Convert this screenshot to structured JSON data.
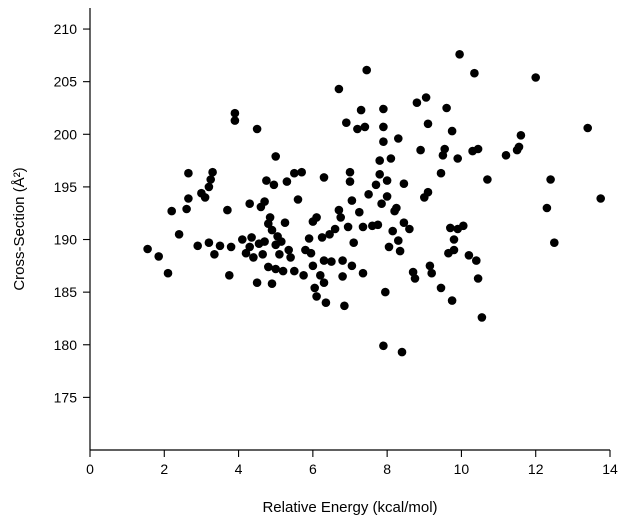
{
  "chart_data": {
    "type": "scatter",
    "title": "",
    "xlabel": "Relative Energy (kcal/mol)",
    "ylabel": "Cross-Section (Å²)",
    "xlim": [
      0,
      14
    ],
    "ylim": [
      170,
      212
    ],
    "xticks": [
      0,
      2,
      4,
      6,
      8,
      10,
      12,
      14
    ],
    "yticks": [
      175,
      180,
      185,
      190,
      195,
      200,
      205,
      210
    ],
    "grid": false,
    "legend": "none",
    "marker_color": "#000000",
    "points": [
      [
        1.55,
        189.1
      ],
      [
        1.85,
        188.4
      ],
      [
        2.1,
        186.8
      ],
      [
        2.2,
        192.7
      ],
      [
        2.4,
        190.5
      ],
      [
        2.6,
        192.9
      ],
      [
        2.65,
        193.9
      ],
      [
        2.65,
        196.3
      ],
      [
        2.9,
        189.4
      ],
      [
        3.0,
        194.4
      ],
      [
        3.1,
        194.0
      ],
      [
        3.2,
        189.7
      ],
      [
        3.2,
        195.0
      ],
      [
        3.25,
        195.7
      ],
      [
        3.3,
        196.4
      ],
      [
        3.35,
        188.6
      ],
      [
        3.5,
        189.4
      ],
      [
        3.7,
        192.8
      ],
      [
        3.75,
        186.6
      ],
      [
        3.8,
        189.3
      ],
      [
        3.9,
        201.3
      ],
      [
        3.9,
        202.0
      ],
      [
        4.1,
        190.0
      ],
      [
        4.2,
        188.7
      ],
      [
        4.3,
        189.3
      ],
      [
        4.3,
        193.4
      ],
      [
        4.35,
        190.2
      ],
      [
        4.4,
        188.3
      ],
      [
        4.5,
        185.9
      ],
      [
        4.5,
        200.5
      ],
      [
        4.55,
        189.6
      ],
      [
        4.6,
        193.1
      ],
      [
        4.65,
        188.6
      ],
      [
        4.7,
        189.8
      ],
      [
        4.7,
        193.6
      ],
      [
        4.75,
        195.6
      ],
      [
        4.8,
        187.4
      ],
      [
        4.8,
        191.5
      ],
      [
        4.85,
        192.1
      ],
      [
        4.9,
        185.8
      ],
      [
        4.9,
        190.9
      ],
      [
        4.95,
        195.2
      ],
      [
        5.0,
        187.2
      ],
      [
        5.0,
        189.5
      ],
      [
        5.0,
        197.9
      ],
      [
        5.05,
        190.3
      ],
      [
        5.1,
        188.6
      ],
      [
        5.15,
        189.8
      ],
      [
        5.2,
        187.0
      ],
      [
        5.25,
        191.6
      ],
      [
        5.3,
        195.5
      ],
      [
        5.35,
        189.0
      ],
      [
        5.4,
        188.3
      ],
      [
        5.5,
        187.0
      ],
      [
        5.5,
        196.3
      ],
      [
        5.6,
        193.8
      ],
      [
        5.7,
        196.4
      ],
      [
        5.75,
        186.6
      ],
      [
        5.8,
        189.0
      ],
      [
        5.9,
        190.1
      ],
      [
        5.95,
        188.7
      ],
      [
        6.0,
        187.5
      ],
      [
        6.0,
        191.7
      ],
      [
        6.05,
        185.4
      ],
      [
        6.1,
        184.6
      ],
      [
        6.1,
        192.1
      ],
      [
        6.2,
        186.6
      ],
      [
        6.25,
        190.2
      ],
      [
        6.3,
        185.9
      ],
      [
        6.3,
        188.0
      ],
      [
        6.3,
        195.9
      ],
      [
        6.35,
        184.0
      ],
      [
        6.45,
        190.5
      ],
      [
        6.5,
        187.9
      ],
      [
        6.6,
        191.0
      ],
      [
        6.7,
        204.3
      ],
      [
        6.7,
        192.8
      ],
      [
        6.75,
        192.1
      ],
      [
        6.8,
        188.0
      ],
      [
        6.8,
        186.5
      ],
      [
        6.85,
        183.7
      ],
      [
        6.9,
        201.1
      ],
      [
        6.95,
        191.2
      ],
      [
        7.0,
        196.4
      ],
      [
        7.0,
        195.5
      ],
      [
        7.05,
        187.5
      ],
      [
        7.05,
        193.7
      ],
      [
        7.1,
        189.7
      ],
      [
        7.2,
        200.5
      ],
      [
        7.25,
        192.6
      ],
      [
        7.3,
        202.3
      ],
      [
        7.35,
        186.8
      ],
      [
        7.35,
        191.2
      ],
      [
        7.4,
        200.7
      ],
      [
        7.45,
        206.1
      ],
      [
        7.5,
        194.3
      ],
      [
        7.6,
        191.3
      ],
      [
        7.7,
        195.2
      ],
      [
        7.75,
        191.4
      ],
      [
        7.8,
        196.2
      ],
      [
        7.8,
        197.5
      ],
      [
        7.85,
        193.4
      ],
      [
        7.9,
        199.3
      ],
      [
        7.9,
        200.7
      ],
      [
        7.9,
        202.4
      ],
      [
        7.9,
        179.9
      ],
      [
        7.95,
        185.0
      ],
      [
        8.0,
        194.1
      ],
      [
        8.0,
        195.6
      ],
      [
        8.05,
        189.3
      ],
      [
        8.1,
        197.7
      ],
      [
        8.15,
        190.8
      ],
      [
        8.2,
        192.7
      ],
      [
        8.25,
        193.0
      ],
      [
        8.3,
        199.6
      ],
      [
        8.3,
        189.9
      ],
      [
        8.35,
        188.9
      ],
      [
        8.4,
        179.3
      ],
      [
        8.45,
        191.6
      ],
      [
        8.45,
        195.3
      ],
      [
        8.6,
        191.0
      ],
      [
        8.7,
        186.9
      ],
      [
        8.75,
        186.3
      ],
      [
        8.8,
        203.0
      ],
      [
        8.9,
        198.5
      ],
      [
        9.0,
        194.0
      ],
      [
        9.05,
        203.5
      ],
      [
        9.1,
        201.0
      ],
      [
        9.1,
        194.5
      ],
      [
        9.15,
        187.5
      ],
      [
        9.2,
        186.8
      ],
      [
        9.45,
        185.4
      ],
      [
        9.45,
        196.3
      ],
      [
        9.5,
        198.0
      ],
      [
        9.55,
        198.6
      ],
      [
        9.6,
        202.5
      ],
      [
        9.65,
        188.7
      ],
      [
        9.7,
        191.1
      ],
      [
        9.75,
        184.2
      ],
      [
        9.75,
        200.3
      ],
      [
        9.8,
        190.0
      ],
      [
        9.8,
        189.0
      ],
      [
        9.9,
        197.7
      ],
      [
        9.9,
        191.0
      ],
      [
        9.95,
        207.6
      ],
      [
        10.05,
        191.3
      ],
      [
        10.2,
        188.5
      ],
      [
        10.3,
        198.4
      ],
      [
        10.35,
        205.8
      ],
      [
        10.4,
        188.0
      ],
      [
        10.45,
        186.3
      ],
      [
        10.45,
        198.6
      ],
      [
        10.55,
        182.6
      ],
      [
        10.7,
        195.7
      ],
      [
        11.2,
        198.0
      ],
      [
        11.5,
        198.5
      ],
      [
        11.55,
        198.8
      ],
      [
        11.6,
        199.9
      ],
      [
        12.0,
        205.4
      ],
      [
        12.3,
        193.0
      ],
      [
        12.4,
        195.7
      ],
      [
        12.5,
        189.7
      ],
      [
        13.4,
        200.6
      ],
      [
        13.75,
        193.9
      ]
    ]
  }
}
